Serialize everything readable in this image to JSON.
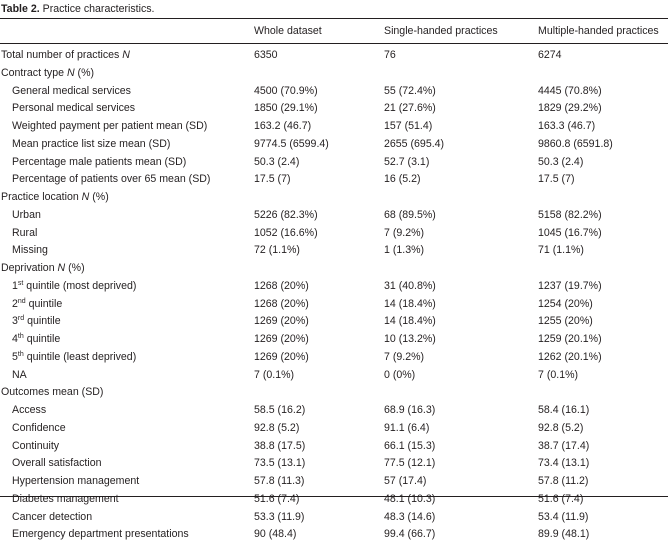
{
  "caption": {
    "label": "Table 2.",
    "text": "Practice characteristics."
  },
  "header": {
    "col0": "",
    "col1": "Whole dataset",
    "col2": "Single-handed practices",
    "col3": "Multiple-handed practices"
  },
  "rows": [
    {
      "label": "Total number of practices ",
      "label_em": "N",
      "v1": "6350",
      "v2": "76",
      "v3": "6274",
      "indent": false
    },
    {
      "label": "Contract type ",
      "label_em": "N",
      "label_tail": " (%)",
      "v1": "",
      "v2": "",
      "v3": "",
      "indent": false
    },
    {
      "label": "General medical services",
      "v1": "4500 (70.9%)",
      "v2": "55 (72.4%)",
      "v3": "4445 (70.8%)",
      "indent": true
    },
    {
      "label": "Personal medical services",
      "v1": "1850 (29.1%)",
      "v2": "21 (27.6%)",
      "v3": "1829 (29.2%)",
      "indent": true
    },
    {
      "label": "Weighted payment per patient mean (SD)",
      "v1": "163.2 (46.7)",
      "v2": "157 (51.4)",
      "v3": "163.3 (46.7)",
      "indent": true
    },
    {
      "label": "Mean practice list size mean (SD)",
      "v1": "9774.5 (6599.4)",
      "v2": "2655 (695.4)",
      "v3": "9860.8 (6591.8)",
      "indent": true
    },
    {
      "label": "Percentage male patients mean (SD)",
      "v1": "50.3 (2.4)",
      "v2": "52.7 (3.1)",
      "v3": "50.3 (2.4)",
      "indent": true
    },
    {
      "label": "Percentage of patients over 65 mean (SD)",
      "v1": "17.5 (7)",
      "v2": "16 (5.2)",
      "v3": "17.5 (7)",
      "indent": true
    },
    {
      "label": "Practice location ",
      "label_em": "N",
      "label_tail": " (%)",
      "v1": "",
      "v2": "",
      "v3": "",
      "indent": false
    },
    {
      "label": "Urban",
      "v1": "5226 (82.3%)",
      "v2": "68 (89.5%)",
      "v3": "5158 (82.2%)",
      "indent": true
    },
    {
      "label": "Rural",
      "v1": "1052 (16.6%)",
      "v2": "7 (9.2%)",
      "v3": "1045 (16.7%)",
      "indent": true
    },
    {
      "label": "Missing",
      "v1": "72 (1.1%)",
      "v2": "1 (1.3%)",
      "v3": "71 (1.1%)",
      "indent": true
    },
    {
      "label": "Deprivation ",
      "label_em": "N",
      "label_tail": " (%)",
      "v1": "",
      "v2": "",
      "v3": "",
      "indent": false
    },
    {
      "label": "1",
      "sup": "st",
      "label_tail": " quintile (most deprived)",
      "v1": "1268 (20%)",
      "v2": "31 (40.8%)",
      "v3": "1237 (19.7%)",
      "indent": true
    },
    {
      "label": "2",
      "sup": "nd",
      "label_tail": " quintile",
      "v1": "1268 (20%)",
      "v2": "14 (18.4%)",
      "v3": "1254 (20%)",
      "indent": true
    },
    {
      "label": "3",
      "sup": "rd",
      "label_tail": " quintile",
      "v1": "1269 (20%)",
      "v2": "14 (18.4%)",
      "v3": "1255 (20%)",
      "indent": true
    },
    {
      "label": "4",
      "sup": "th",
      "label_tail": " quintile",
      "v1": "1269 (20%)",
      "v2": "10 (13.2%)",
      "v3": "1259 (20.1%)",
      "indent": true
    },
    {
      "label": "5",
      "sup": "th",
      "label_tail": " quintile (least deprived)",
      "v1": "1269 (20%)",
      "v2": "7 (9.2%)",
      "v3": "1262 (20.1%)",
      "indent": true
    },
    {
      "label": "NA",
      "v1": "7 (0.1%)",
      "v2": "0 (0%)",
      "v3": "7 (0.1%)",
      "indent": true
    },
    {
      "label": "Outcomes mean (SD)",
      "v1": "",
      "v2": "",
      "v3": "",
      "indent": false
    },
    {
      "label": "Access",
      "v1": "58.5 (16.2)",
      "v2": "68.9 (16.3)",
      "v3": "58.4 (16.1)",
      "indent": true
    },
    {
      "label": "Confidence",
      "v1": "92.8 (5.2)",
      "v2": "91.1 (6.4)",
      "v3": "92.8 (5.2)",
      "indent": true
    },
    {
      "label": "Continuity",
      "v1": "38.8 (17.5)",
      "v2": "66.1 (15.3)",
      "v3": "38.7 (17.4)",
      "indent": true
    },
    {
      "label": "Overall satisfaction",
      "v1": "73.5 (13.1)",
      "v2": "77.5 (12.1)",
      "v3": "73.4 (13.1)",
      "indent": true
    },
    {
      "label": "Hypertension management",
      "v1": "57.8 (11.3)",
      "v2": "57 (17.4)",
      "v3": "57.8 (11.2)",
      "indent": true
    },
    {
      "label": "Diabetes management",
      "v1": "51.6 (7.4)",
      "v2": "48.1 (10.3)",
      "v3": "51.6 (7.4)",
      "indent": true
    },
    {
      "label": "Cancer detection",
      "v1": "53.3 (11.9)",
      "v2": "48.3 (14.6)",
      "v3": "53.4 (11.9)",
      "indent": true
    },
    {
      "label": "Emergency department presentations",
      "v1": "90 (48.4)",
      "v2": "99.4 (66.7)",
      "v3": "89.9 (48.1)",
      "indent": true
    }
  ]
}
